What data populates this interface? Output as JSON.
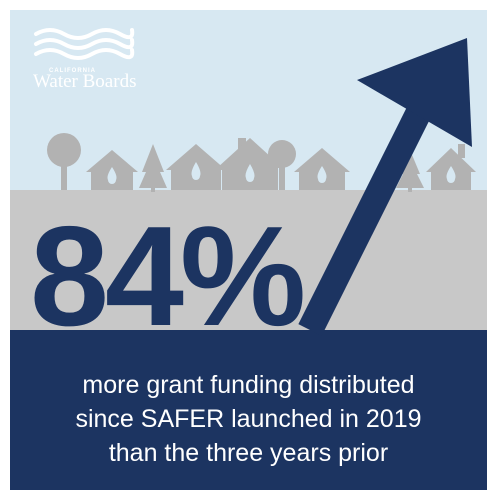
{
  "logo": {
    "state_label": "CALIFORNIA",
    "brand_name": "Water Boards"
  },
  "headline": {
    "stat_value": "84%"
  },
  "caption": {
    "line1": "more grant funding distributed",
    "line2": "since SAFER launched in 2019",
    "line3": "than the three years prior"
  },
  "colors": {
    "sky": "#d7e8f2",
    "ground": "#c8c8c8",
    "skyline": "#b2b2b2",
    "navy": "#1c3461",
    "white": "#ffffff"
  }
}
